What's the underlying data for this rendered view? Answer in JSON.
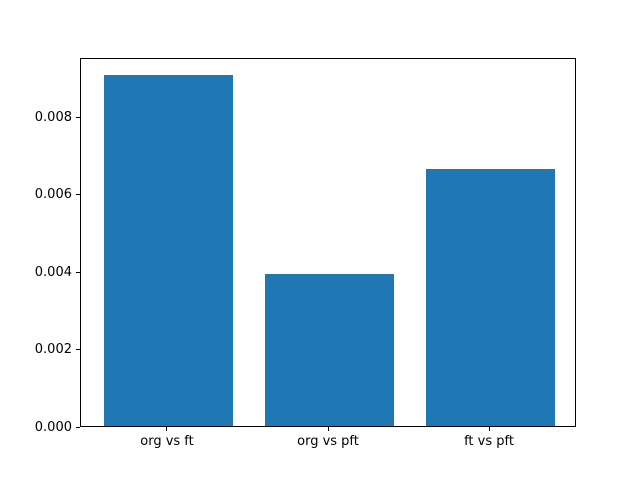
{
  "figure": {
    "background": "#ffffff"
  },
  "chart_data": {
    "type": "bar",
    "title": "",
    "xlabel": "",
    "ylabel": "",
    "categories": [
      "org vs ft",
      "org vs pft",
      "ft vs pft"
    ],
    "values": [
      0.00908,
      0.00393,
      0.00665
    ],
    "bar_color": "#1f77b4",
    "ylim": [
      0,
      0.00954
    ],
    "xlim": [
      -0.54,
      2.54
    ],
    "x_positions": [
      0,
      1,
      2
    ],
    "bar_width": 0.8,
    "yticks": [
      0.0,
      0.002,
      0.004,
      0.006,
      0.008
    ],
    "ytick_labels": [
      "0.000",
      "0.002",
      "0.004",
      "0.006",
      "0.008"
    ],
    "grid": false,
    "legend": null
  }
}
